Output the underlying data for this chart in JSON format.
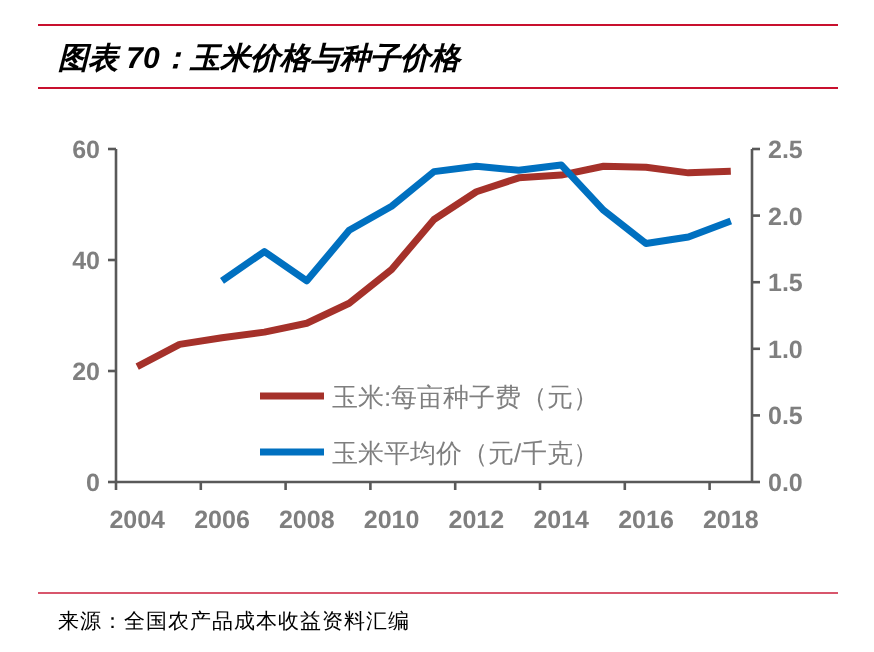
{
  "chart_data": {
    "type": "line",
    "title": "图表 70：玉米价格与种子价格",
    "categories": [
      "2004",
      null,
      "2006",
      null,
      "2008",
      null,
      "2010",
      null,
      "2012",
      null,
      "2014",
      null,
      "2016",
      null,
      "2018"
    ],
    "series": [
      {
        "name": "玉米:每亩种子费（元）",
        "color": "#a5312a",
        "values": [
          20.8,
          24.8,
          26.0,
          27.0,
          28.6,
          32.2,
          38.3,
          47.3,
          52.3,
          54.8,
          55.3,
          56.9,
          56.7,
          55.7,
          56.0
        ]
      },
      {
        "name": "玉米平均价（元/千克）",
        "color": "#0070c0",
        "axis": "y2",
        "values": [
          null,
          null,
          1.51,
          1.73,
          1.51,
          1.89,
          2.07,
          2.33,
          2.37,
          2.34,
          2.38,
          2.04,
          1.79,
          1.84,
          1.96
        ]
      }
    ],
    "ylim": [
      0,
      60
    ],
    "yticks": [
      0,
      20,
      40,
      60
    ],
    "y2lim": [
      0,
      2.5
    ],
    "y2ticks": [
      {
        "value": 0,
        "label": "0.0"
      },
      {
        "value": 0.5,
        "label": "0.5"
      },
      {
        "value": 1,
        "label": "1.0"
      },
      {
        "value": 1.5,
        "label": "1.5"
      },
      {
        "value": 2,
        "label": "2.0"
      },
      {
        "value": 2.5,
        "label": "2.5"
      }
    ],
    "legend": "bottom",
    "grid": false,
    "annotations": [
      "来源：全国农产品成本收益资料汇编"
    ]
  }
}
